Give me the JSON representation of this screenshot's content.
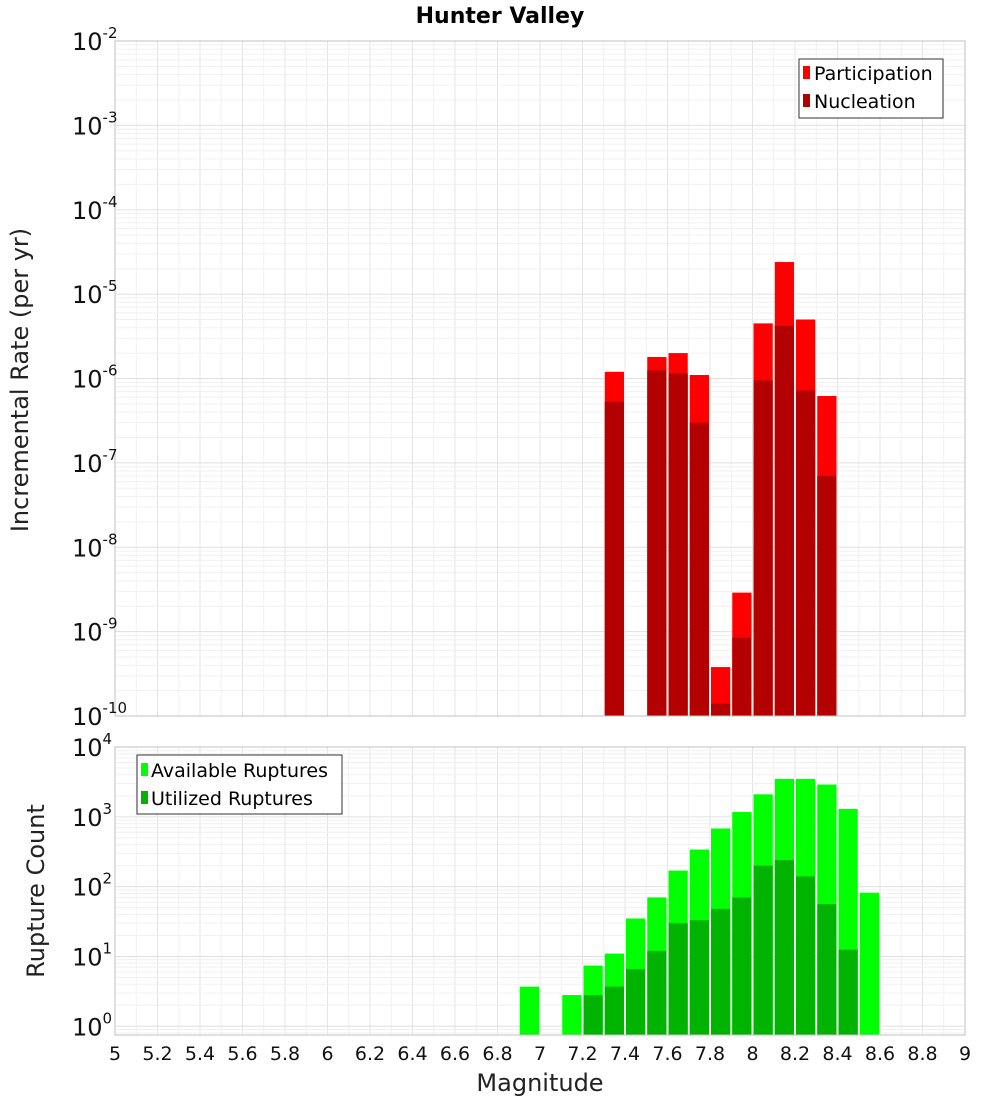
{
  "title": "Hunter Valley",
  "xlabel": "Magnitude",
  "x_ticks": [
    "5",
    "5.2",
    "5.4",
    "5.6",
    "5.8",
    "6",
    "6.2",
    "6.4",
    "6.6",
    "6.8",
    "7",
    "7.2",
    "7.4",
    "7.6",
    "7.8",
    "8",
    "8.2",
    "8.4",
    "8.6",
    "8.8",
    "9"
  ],
  "colors": {
    "participation": "#ff0000",
    "nucleation": "#b30000",
    "available": "#00ff00",
    "utilized": "#00b300",
    "grid": "#e6e6e6",
    "frame": "#c0c0c0"
  },
  "chart_data": [
    {
      "type": "bar",
      "title": "Hunter Valley",
      "ylabel": "Incremental Rate (per yr)",
      "yscale": "log",
      "ylim": [
        1e-10,
        0.01
      ],
      "xlim": [
        5,
        9
      ],
      "y_ticks": [
        {
          "base": "10",
          "exp": "-2",
          "value": 0.01
        },
        {
          "base": "10",
          "exp": "-3",
          "value": 0.001
        },
        {
          "base": "10",
          "exp": "-4",
          "value": 0.0001
        },
        {
          "base": "10",
          "exp": "-5",
          "value": 1e-05
        },
        {
          "base": "10",
          "exp": "-6",
          "value": 1e-06
        },
        {
          "base": "10",
          "exp": "-7",
          "value": 1e-07
        },
        {
          "base": "10",
          "exp": "-8",
          "value": 1e-08
        },
        {
          "base": "10",
          "exp": "-9",
          "value": 1e-09
        },
        {
          "base": "10",
          "exp": "-10",
          "value": 1e-10
        }
      ],
      "legend_position": "top-right",
      "series": [
        {
          "name": "Participation",
          "x": [
            7.35,
            7.55,
            7.65,
            7.75,
            7.85,
            7.95,
            8.05,
            8.15,
            8.25,
            8.35
          ],
          "values": [
            1.2e-06,
            1.8e-06,
            2e-06,
            1.1e-06,
            3.8e-10,
            2.9e-09,
            4.5e-06,
            2.4e-05,
            5e-06,
            6.2e-07
          ]
        },
        {
          "name": "Nucleation",
          "x": [
            7.35,
            7.55,
            7.65,
            7.75,
            7.85,
            7.95,
            8.05,
            8.15,
            8.25,
            8.35
          ],
          "values": [
            5.3e-07,
            1.25e-06,
            1.15e-06,
            3e-07,
            1.4e-10,
            8.5e-10,
            9.5e-07,
            4.2e-06,
            7.2e-07,
            7e-08
          ]
        }
      ]
    },
    {
      "type": "bar",
      "ylabel": "Rupture Count",
      "yscale": "log",
      "ylim": [
        0.75,
        10000
      ],
      "xlim": [
        5,
        9
      ],
      "y_ticks": [
        {
          "base": "10",
          "exp": "4",
          "value": 10000
        },
        {
          "base": "10",
          "exp": "3",
          "value": 1000
        },
        {
          "base": "10",
          "exp": "2",
          "value": 100
        },
        {
          "base": "10",
          "exp": "1",
          "value": 10
        },
        {
          "base": "10",
          "exp": "0",
          "value": 1
        }
      ],
      "legend_position": "top-left",
      "series": [
        {
          "name": "Available Ruptures",
          "x": [
            6.95,
            7.15,
            7.25,
            7.35,
            7.45,
            7.55,
            7.65,
            7.75,
            7.85,
            7.95,
            8.05,
            8.15,
            8.25,
            8.35,
            8.45,
            8.55
          ],
          "values": [
            3.7,
            2.8,
            7.4,
            11,
            35,
            70,
            170,
            340,
            680,
            1170,
            2100,
            3500,
            3500,
            2900,
            1300,
            82
          ]
        },
        {
          "name": "Utilized Ruptures",
          "x": [
            7.25,
            7.35,
            7.45,
            7.55,
            7.65,
            7.75,
            7.85,
            7.95,
            8.05,
            8.15,
            8.25,
            8.35,
            8.45
          ],
          "values": [
            2.8,
            3.7,
            6.6,
            12,
            30,
            33,
            48,
            70,
            200,
            240,
            140,
            56,
            12.5
          ]
        }
      ]
    }
  ]
}
